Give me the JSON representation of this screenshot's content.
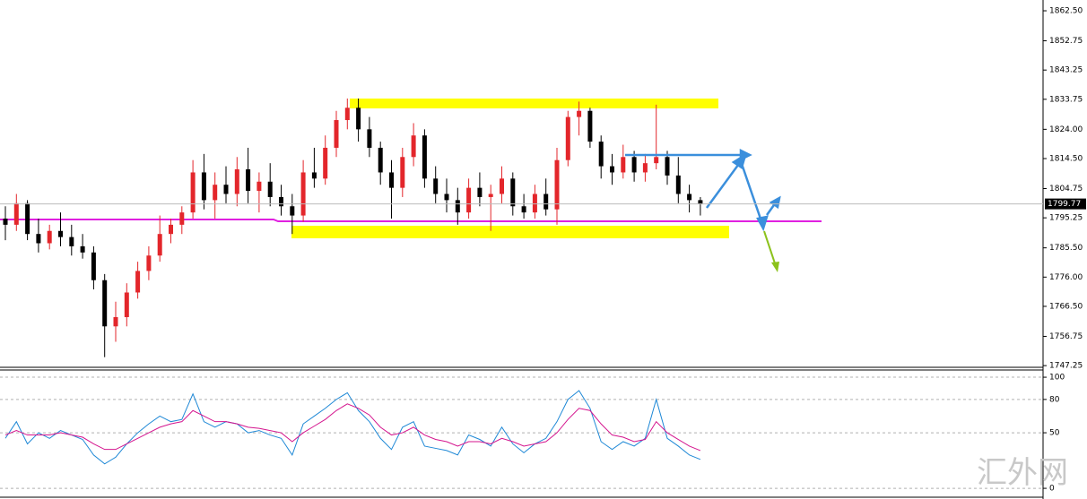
{
  "chart_data": {
    "type": "candlestick",
    "up_color": "#e3262b",
    "down_color": "#000000",
    "open": [
      1795,
      1793,
      1800,
      1790,
      1787,
      1791,
      1789,
      1786,
      1784,
      1775,
      1760,
      1763,
      1771,
      1778,
      1783,
      1790,
      1793,
      1797,
      1810,
      1801,
      1806,
      1803,
      1811,
      1804,
      1807,
      1802,
      1799,
      1796,
      1810,
      1808,
      1818,
      1827,
      1831,
      1824,
      1818,
      1810,
      1805,
      1815,
      1822,
      1808,
      1803,
      1801,
      1797,
      1805,
      1802,
      1803,
      1808,
      1799,
      1797,
      1803,
      1798,
      1814,
      1828,
      1830,
      1820,
      1812,
      1810,
      1815,
      1810,
      1813,
      1815,
      1809,
      1803,
      1801
    ],
    "high": [
      1799,
      1803,
      1801,
      1795,
      1793,
      1797,
      1793,
      1790,
      1786,
      1777,
      1768,
      1774,
      1781,
      1786,
      1796,
      1795,
      1799,
      1814,
      1816,
      1810,
      1812,
      1815,
      1818,
      1810,
      1813,
      1806,
      1803,
      1814,
      1818,
      1822,
      1830,
      1834,
      1834,
      1828,
      1820,
      1814,
      1818,
      1826,
      1824,
      1812,
      1808,
      1805,
      1808,
      1810,
      1806,
      1812,
      1810,
      1803,
      1806,
      1808,
      1818,
      1830,
      1833,
      1831,
      1822,
      1816,
      1819,
      1817,
      1816,
      1832,
      1817,
      1815,
      1806,
      1802
    ],
    "low": [
      1788,
      1791,
      1788,
      1784,
      1785,
      1786,
      1783,
      1782,
      1772,
      1750,
      1755,
      1760,
      1769,
      1775,
      1781,
      1787,
      1790,
      1795,
      1798,
      1795,
      1800,
      1799,
      1800,
      1797,
      1799,
      1796,
      1790,
      1794,
      1805,
      1806,
      1815,
      1824,
      1820,
      1815,
      1806,
      1795,
      1802,
      1812,
      1805,
      1800,
      1797,
      1793,
      1795,
      1799,
      1791,
      1800,
      1796,
      1795,
      1795,
      1796,
      1793,
      1812,
      1822,
      1818,
      1808,
      1806,
      1808,
      1807,
      1807,
      1811,
      1806,
      1800,
      1797,
      1796
    ],
    "close": [
      1793,
      1800,
      1790,
      1787,
      1791,
      1789,
      1786,
      1784,
      1775,
      1760,
      1763,
      1771,
      1778,
      1783,
      1790,
      1793,
      1797,
      1810,
      1801,
      1806,
      1803,
      1811,
      1804,
      1807,
      1802,
      1799,
      1796,
      1810,
      1808,
      1818,
      1827,
      1831,
      1824,
      1818,
      1810,
      1805,
      1815,
      1822,
      1808,
      1803,
      1801,
      1797,
      1805,
      1802,
      1803,
      1808,
      1799,
      1797,
      1803,
      1798,
      1814,
      1828,
      1830,
      1820,
      1812,
      1810,
      1815,
      1810,
      1813,
      1815,
      1809,
      1803,
      1801,
      1799.77
    ],
    "ylim": [
      1746.7,
      1866.0
    ],
    "yticks": [
      {
        "value": 1862.5,
        "label": "1862.50"
      },
      {
        "value": 1852.75,
        "label": "1852.75"
      },
      {
        "value": 1843.25,
        "label": "1843.25"
      },
      {
        "value": 1833.75,
        "label": "1833.75"
      },
      {
        "value": 1824,
        "label": "1824.00"
      },
      {
        "value": 1814.5,
        "label": "1814.50"
      },
      {
        "value": 1804.75,
        "label": "1804.75"
      },
      {
        "value": 1795.25,
        "label": "1795.25"
      },
      {
        "value": 1785.5,
        "label": "1785.50"
      },
      {
        "value": 1776,
        "label": "1776.00"
      },
      {
        "value": 1766.5,
        "label": "1766.50"
      },
      {
        "value": 1756.75,
        "label": "1756.75"
      },
      {
        "value": 1747.25,
        "label": "1747.25"
      }
    ],
    "current_price": 1799.77,
    "oscillator": {
      "ylim": [
        -8,
        106.5
      ],
      "yticks": [
        100,
        80,
        50,
        0
      ],
      "series": [
        {
          "color": "#1e88d6",
          "values": [
            45,
            60,
            40,
            50,
            45,
            52,
            48,
            44,
            30,
            22,
            28,
            40,
            50,
            58,
            65,
            60,
            62,
            85,
            60,
            55,
            60,
            58,
            50,
            52,
            48,
            45,
            30,
            58,
            65,
            72,
            80,
            86,
            70,
            60,
            45,
            35,
            55,
            60,
            38,
            36,
            34,
            30,
            48,
            44,
            38,
            55,
            40,
            32,
            40,
            45,
            60,
            80,
            88,
            72,
            42,
            35,
            42,
            38,
            45,
            80,
            45,
            38,
            30,
            26
          ]
        },
        {
          "color": "#d4158e",
          "values": [
            48,
            52,
            48,
            48,
            48,
            50,
            48,
            46,
            40,
            35,
            35,
            40,
            45,
            50,
            55,
            58,
            60,
            70,
            65,
            60,
            60,
            58,
            55,
            54,
            52,
            50,
            42,
            50,
            56,
            62,
            70,
            76,
            72,
            66,
            55,
            48,
            50,
            55,
            48,
            44,
            42,
            38,
            42,
            42,
            40,
            45,
            42,
            38,
            40,
            42,
            50,
            62,
            72,
            70,
            58,
            48,
            46,
            42,
            44,
            60,
            50,
            44,
            38,
            34
          ]
        }
      ]
    },
    "watermark": "汇外网"
  }
}
